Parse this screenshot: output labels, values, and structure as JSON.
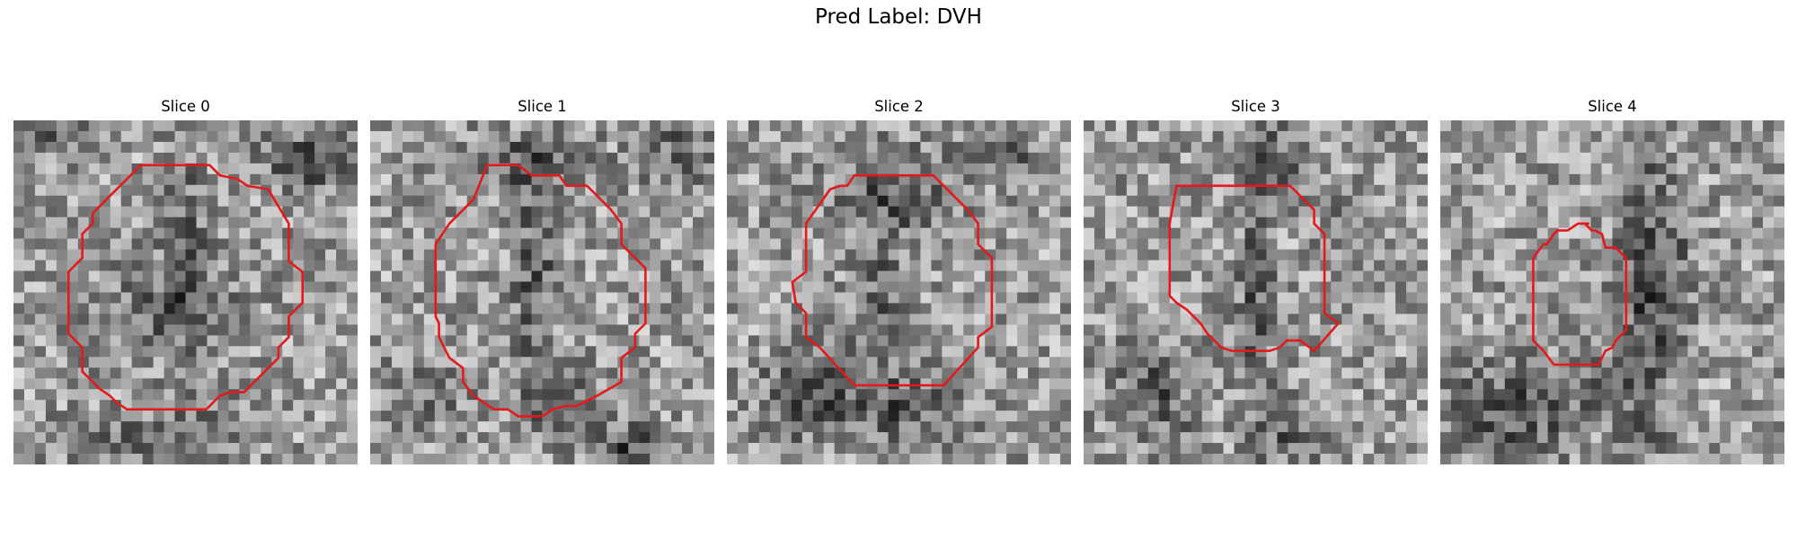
{
  "figure": {
    "title": "Pred Label: DVH"
  },
  "panels": [
    {
      "title": "Slice 0",
      "grid": 32,
      "seed": 11,
      "dark_features": [
        [
          0.05,
          0.03,
          0.15,
          0.07,
          0.28
        ],
        [
          0.85,
          0.12,
          0.12,
          0.1,
          0.3
        ],
        [
          0.5,
          0.35,
          0.06,
          0.3,
          0.18
        ],
        [
          0.45,
          0.55,
          0.2,
          0.15,
          0.18
        ],
        [
          0.35,
          0.92,
          0.25,
          0.06,
          0.2
        ],
        [
          0.6,
          0.88,
          0.1,
          0.08,
          0.18
        ]
      ],
      "contour": [
        [
          0.37,
          0.13
        ],
        [
          0.57,
          0.13
        ],
        [
          0.6,
          0.16
        ],
        [
          0.65,
          0.17
        ],
        [
          0.68,
          0.19
        ],
        [
          0.74,
          0.2
        ],
        [
          0.8,
          0.3
        ],
        [
          0.8,
          0.41
        ],
        [
          0.84,
          0.44
        ],
        [
          0.84,
          0.53
        ],
        [
          0.8,
          0.57
        ],
        [
          0.8,
          0.63
        ],
        [
          0.77,
          0.66
        ],
        [
          0.77,
          0.69
        ],
        [
          0.67,
          0.79
        ],
        [
          0.63,
          0.79
        ],
        [
          0.6,
          0.8
        ],
        [
          0.57,
          0.83
        ],
        [
          0.56,
          0.84
        ],
        [
          0.33,
          0.84
        ],
        [
          0.3,
          0.82
        ],
        [
          0.28,
          0.8
        ],
        [
          0.25,
          0.78
        ],
        [
          0.2,
          0.73
        ],
        [
          0.2,
          0.66
        ],
        [
          0.16,
          0.62
        ],
        [
          0.16,
          0.44
        ],
        [
          0.2,
          0.4
        ],
        [
          0.2,
          0.33
        ],
        [
          0.23,
          0.3
        ],
        [
          0.23,
          0.27
        ]
      ]
    },
    {
      "title": "Slice 1",
      "grid": 32,
      "seed": 23,
      "dark_features": [
        [
          0.46,
          0.12,
          0.18,
          0.08,
          0.24
        ],
        [
          0.48,
          0.45,
          0.06,
          0.3,
          0.25
        ],
        [
          0.55,
          0.8,
          0.12,
          0.1,
          0.22
        ],
        [
          0.75,
          0.95,
          0.12,
          0.06,
          0.3
        ],
        [
          0.15,
          0.8,
          0.12,
          0.1,
          0.18
        ],
        [
          0.9,
          0.1,
          0.1,
          0.1,
          0.22
        ]
      ],
      "contour": [
        [
          0.34,
          0.13
        ],
        [
          0.43,
          0.13
        ],
        [
          0.47,
          0.16
        ],
        [
          0.55,
          0.16
        ],
        [
          0.57,
          0.19
        ],
        [
          0.63,
          0.19
        ],
        [
          0.67,
          0.23
        ],
        [
          0.7,
          0.26
        ],
        [
          0.73,
          0.3
        ],
        [
          0.73,
          0.36
        ],
        [
          0.8,
          0.43
        ],
        [
          0.8,
          0.59
        ],
        [
          0.77,
          0.62
        ],
        [
          0.77,
          0.66
        ],
        [
          0.73,
          0.69
        ],
        [
          0.73,
          0.76
        ],
        [
          0.66,
          0.8
        ],
        [
          0.6,
          0.83
        ],
        [
          0.57,
          0.83
        ],
        [
          0.53,
          0.84
        ],
        [
          0.5,
          0.86
        ],
        [
          0.43,
          0.86
        ],
        [
          0.4,
          0.84
        ],
        [
          0.36,
          0.84
        ],
        [
          0.3,
          0.8
        ],
        [
          0.27,
          0.76
        ],
        [
          0.27,
          0.72
        ],
        [
          0.23,
          0.69
        ],
        [
          0.2,
          0.63
        ],
        [
          0.2,
          0.59
        ],
        [
          0.19,
          0.57
        ],
        [
          0.19,
          0.36
        ],
        [
          0.23,
          0.3
        ],
        [
          0.27,
          0.26
        ],
        [
          0.3,
          0.23
        ]
      ]
    },
    {
      "title": "Slice 2",
      "grid": 32,
      "seed": 37,
      "dark_features": [
        [
          0.48,
          0.2,
          0.18,
          0.12,
          0.24
        ],
        [
          0.45,
          0.55,
          0.08,
          0.3,
          0.18
        ],
        [
          0.25,
          0.8,
          0.15,
          0.12,
          0.3
        ],
        [
          0.55,
          0.85,
          0.15,
          0.1,
          0.22
        ],
        [
          0.82,
          0.08,
          0.1,
          0.08,
          0.2
        ]
      ],
      "contour": [
        [
          0.37,
          0.16
        ],
        [
          0.6,
          0.16
        ],
        [
          0.7,
          0.26
        ],
        [
          0.73,
          0.3
        ],
        [
          0.73,
          0.36
        ],
        [
          0.77,
          0.4
        ],
        [
          0.77,
          0.6
        ],
        [
          0.73,
          0.63
        ],
        [
          0.73,
          0.66
        ],
        [
          0.63,
          0.77
        ],
        [
          0.63,
          0.77
        ],
        [
          0.37,
          0.77
        ],
        [
          0.27,
          0.66
        ],
        [
          0.23,
          0.63
        ],
        [
          0.23,
          0.56
        ],
        [
          0.2,
          0.53
        ],
        [
          0.19,
          0.47
        ],
        [
          0.23,
          0.44
        ],
        [
          0.23,
          0.3
        ],
        [
          0.3,
          0.2
        ],
        [
          0.33,
          0.19
        ],
        [
          0.35,
          0.19
        ]
      ]
    },
    {
      "title": "Slice 3",
      "grid": 32,
      "seed": 53,
      "dark_features": [
        [
          0.55,
          0.1,
          0.12,
          0.1,
          0.22
        ],
        [
          0.5,
          0.5,
          0.05,
          0.32,
          0.24
        ],
        [
          0.2,
          0.8,
          0.12,
          0.15,
          0.25
        ],
        [
          0.6,
          0.9,
          0.1,
          0.1,
          0.22
        ],
        [
          0.75,
          0.3,
          0.08,
          0.08,
          0.12
        ]
      ],
      "contour": [
        [
          0.27,
          0.19
        ],
        [
          0.6,
          0.19
        ],
        [
          0.67,
          0.26
        ],
        [
          0.67,
          0.3
        ],
        [
          0.7,
          0.33
        ],
        [
          0.7,
          0.56
        ],
        [
          0.74,
          0.59
        ],
        [
          0.67,
          0.67
        ],
        [
          0.63,
          0.64
        ],
        [
          0.59,
          0.64
        ],
        [
          0.57,
          0.66
        ],
        [
          0.54,
          0.67
        ],
        [
          0.43,
          0.67
        ],
        [
          0.4,
          0.66
        ],
        [
          0.36,
          0.62
        ],
        [
          0.34,
          0.59
        ],
        [
          0.3,
          0.55
        ],
        [
          0.27,
          0.53
        ],
        [
          0.25,
          0.51
        ],
        [
          0.25,
          0.3
        ]
      ]
    },
    {
      "title": "Slice 4",
      "grid": 32,
      "seed": 71,
      "dark_features": [
        [
          0.6,
          0.5,
          0.08,
          0.45,
          0.3
        ],
        [
          0.2,
          0.85,
          0.2,
          0.12,
          0.3
        ],
        [
          0.4,
          0.75,
          0.12,
          0.08,
          0.15
        ],
        [
          0.7,
          0.45,
          0.06,
          0.2,
          0.12
        ]
      ],
      "contour": [
        [
          0.27,
          0.4
        ],
        [
          0.3,
          0.36
        ],
        [
          0.31,
          0.36
        ],
        [
          0.33,
          0.33
        ],
        [
          0.34,
          0.32
        ],
        [
          0.37,
          0.32
        ],
        [
          0.4,
          0.3
        ],
        [
          0.43,
          0.3
        ],
        [
          0.42,
          0.3
        ],
        [
          0.44,
          0.32
        ],
        [
          0.45,
          0.32
        ],
        [
          0.47,
          0.33
        ],
        [
          0.48,
          0.37
        ],
        [
          0.51,
          0.37
        ],
        [
          0.54,
          0.4
        ],
        [
          0.54,
          0.61
        ],
        [
          0.51,
          0.64
        ],
        [
          0.5,
          0.66
        ],
        [
          0.48,
          0.67
        ],
        [
          0.46,
          0.71
        ],
        [
          0.33,
          0.71
        ],
        [
          0.3,
          0.67
        ],
        [
          0.27,
          0.64
        ]
      ]
    }
  ],
  "colors": {
    "contour": "#e31a1c",
    "background": "#ffffff"
  }
}
